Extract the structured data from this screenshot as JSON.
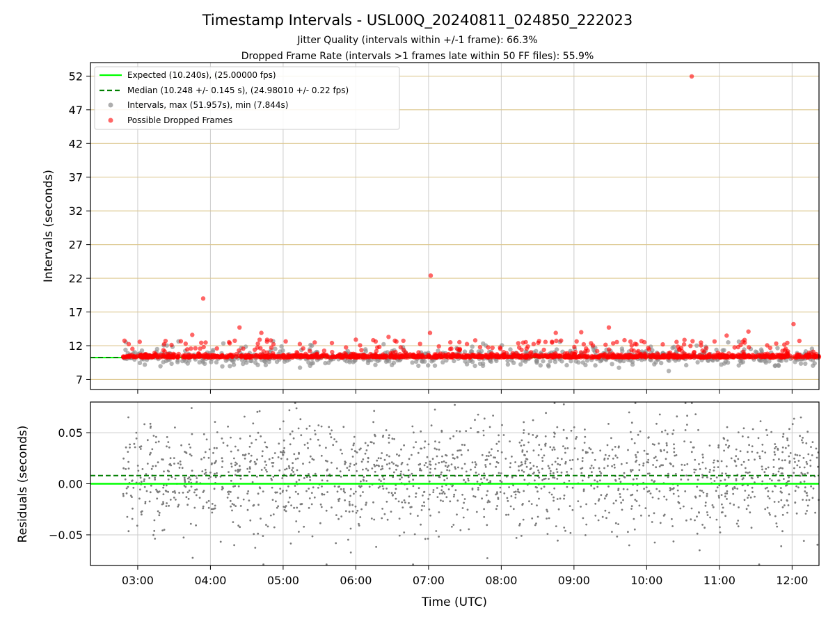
{
  "title": "Timestamp Intervals - USL00Q_20240811_024850_222023",
  "subtitle1": "Jitter Quality (intervals within +/-1 frame): 66.3%",
  "subtitle2": "Dropped Frame Rate (intervals >1 frames late within 50 FF files): 55.9%",
  "colors": {
    "expected": "#00ff00",
    "median": "#007f00",
    "intervals": "#8c8c8c",
    "dropped": "#ff0000",
    "hgrid_top": "#dcc68c",
    "vgrid": "#cccccc",
    "residuals": "#7a7a7a"
  },
  "chart_data": [
    {
      "type": "scatter",
      "panel": "top",
      "xlabel": "",
      "ylabel": "Intervals (seconds)",
      "x_ticks": [
        "03:00",
        "04:00",
        "05:00",
        "06:00",
        "07:00",
        "08:00",
        "09:00",
        "10:00",
        "11:00",
        "12:00"
      ],
      "y_ticks": [
        "7",
        "12",
        "17",
        "22",
        "27",
        "32",
        "37",
        "42",
        "47",
        "52"
      ],
      "ylim": [
        5.5,
        54.0
      ],
      "xlim_hours": [
        2.35,
        12.37
      ],
      "grid": "on",
      "legend_placement": "top-left",
      "legend": [
        {
          "label": "Expected (10.240s), (25.00000 fps)",
          "kind": "solid-line"
        },
        {
          "label": "Median (10.248 +/- 0.145 s), (24.98010 +/- 0.22 fps)",
          "kind": "dashed-line"
        },
        {
          "label": "Intervals, max (51.957s), min (7.844s)",
          "kind": "grey-dot"
        },
        {
          "label": "Possible Dropped Frames",
          "kind": "red-dot"
        }
      ],
      "expected_interval": 10.24,
      "median_interval": 10.248,
      "max_interval": 51.957,
      "min_interval": 7.844,
      "x_start_hour": 2.8,
      "x_end_hour": 12.37,
      "dropped_outliers": [
        {
          "t": 10.62,
          "y": 51.96
        },
        {
          "t": 7.03,
          "y": 22.4
        },
        {
          "t": 3.9,
          "y": 19.0
        },
        {
          "t": 12.02,
          "y": 15.2
        },
        {
          "t": 4.4,
          "y": 14.7
        },
        {
          "t": 9.48,
          "y": 14.7
        },
        {
          "t": 4.7,
          "y": 13.9
        },
        {
          "t": 7.02,
          "y": 13.9
        },
        {
          "t": 8.75,
          "y": 13.9
        },
        {
          "t": 9.1,
          "y": 14.0
        },
        {
          "t": 11.4,
          "y": 14.1
        },
        {
          "t": 3.75,
          "y": 13.6
        },
        {
          "t": 11.1,
          "y": 13.5
        },
        {
          "t": 6.0,
          "y": 12.9
        },
        {
          "t": 6.45,
          "y": 13.3
        },
        {
          "t": 7.3,
          "y": 12.5
        }
      ]
    },
    {
      "type": "scatter",
      "panel": "bottom",
      "xlabel": "Time (UTC)",
      "ylabel": "Residuals (seconds)",
      "x_ticks": [
        "03:00",
        "04:00",
        "05:00",
        "06:00",
        "07:00",
        "08:00",
        "09:00",
        "10:00",
        "11:00",
        "12:00"
      ],
      "y_ticks": [
        "0.05",
        "0.00",
        "−0.05"
      ],
      "ylim": [
        -0.08,
        0.08
      ],
      "expected_residual": 0.0,
      "median_residual": 0.008,
      "grid": "on"
    }
  ]
}
